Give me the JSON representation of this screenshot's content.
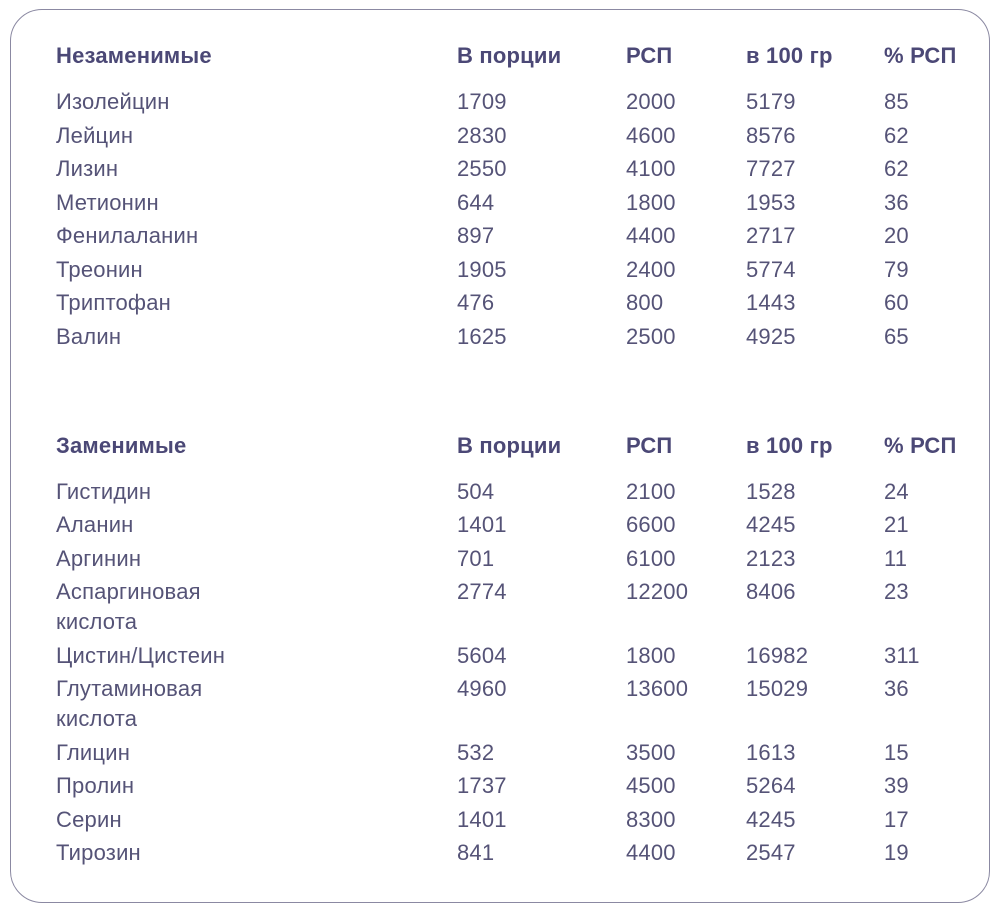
{
  "colors": {
    "background": "#ffffff",
    "card_border": "#8b89a2",
    "header_text": "#4b4876",
    "body_text": "#555377"
  },
  "chart_data": [
    {
      "type": "table",
      "title": "Незаменимые",
      "columns": [
        "В порции",
        "РСП",
        "в 100 гр",
        "% РСП"
      ],
      "rows": [
        {
          "name": "Изолейцин",
          "portion": "1709",
          "rsp": "2000",
          "per100": "5179",
          "pct_rsp": "85"
        },
        {
          "name": "Лейцин",
          "portion": "2830",
          "rsp": "4600",
          "per100": "8576",
          "pct_rsp": "62"
        },
        {
          "name": "Лизин",
          "portion": "2550",
          "rsp": "4100",
          "per100": "7727",
          "pct_rsp": "62"
        },
        {
          "name": "Метионин",
          "portion": "644",
          "rsp": "1800",
          "per100": "1953",
          "pct_rsp": "36"
        },
        {
          "name": "Фенилаланин",
          "portion": "897",
          "rsp": "4400",
          "per100": "2717",
          "pct_rsp": "20"
        },
        {
          "name": "Треонин",
          "portion": "1905",
          "rsp": "2400",
          "per100": "5774",
          "pct_rsp": "79"
        },
        {
          "name": "Триптофан",
          "portion": "476",
          "rsp": "800",
          "per100": "1443",
          "pct_rsp": "60"
        },
        {
          "name": "Валин",
          "portion": "1625",
          "rsp": "2500",
          "per100": "4925",
          "pct_rsp": "65"
        }
      ]
    },
    {
      "type": "table",
      "title": "Заменимые",
      "columns": [
        "В порции",
        "РСП",
        "в 100 гр",
        "% РСП"
      ],
      "rows": [
        {
          "name": "Гистидин",
          "portion": "504",
          "rsp": "2100",
          "per100": "1528",
          "pct_rsp": "24"
        },
        {
          "name": "Аланин",
          "portion": "1401",
          "rsp": "6600",
          "per100": "4245",
          "pct_rsp": "21"
        },
        {
          "name": "Аргинин",
          "portion": "701",
          "rsp": "6100",
          "per100": "2123",
          "pct_rsp": "11"
        },
        {
          "name": "Аспаргиновая\nкислота",
          "portion": "2774",
          "rsp": "12200",
          "per100": "8406",
          "pct_rsp": "23"
        },
        {
          "name": "Цистин/Цистеин",
          "portion": "5604",
          "rsp": "1800",
          "per100": "16982",
          "pct_rsp": "311"
        },
        {
          "name": "Глутаминовая\nкислота",
          "portion": "4960",
          "rsp": "13600",
          "per100": "15029",
          "pct_rsp": "36"
        },
        {
          "name": "Глицин",
          "portion": "532",
          "rsp": "3500",
          "per100": "1613",
          "pct_rsp": "15"
        },
        {
          "name": "Пролин",
          "portion": "1737",
          "rsp": "4500",
          "per100": "5264",
          "pct_rsp": "39"
        },
        {
          "name": "Серин",
          "portion": "1401",
          "rsp": "8300",
          "per100": "4245",
          "pct_rsp": "17"
        },
        {
          "name": "Тирозин",
          "portion": "841",
          "rsp": "4400",
          "per100": "2547",
          "pct_rsp": "19"
        }
      ]
    }
  ]
}
